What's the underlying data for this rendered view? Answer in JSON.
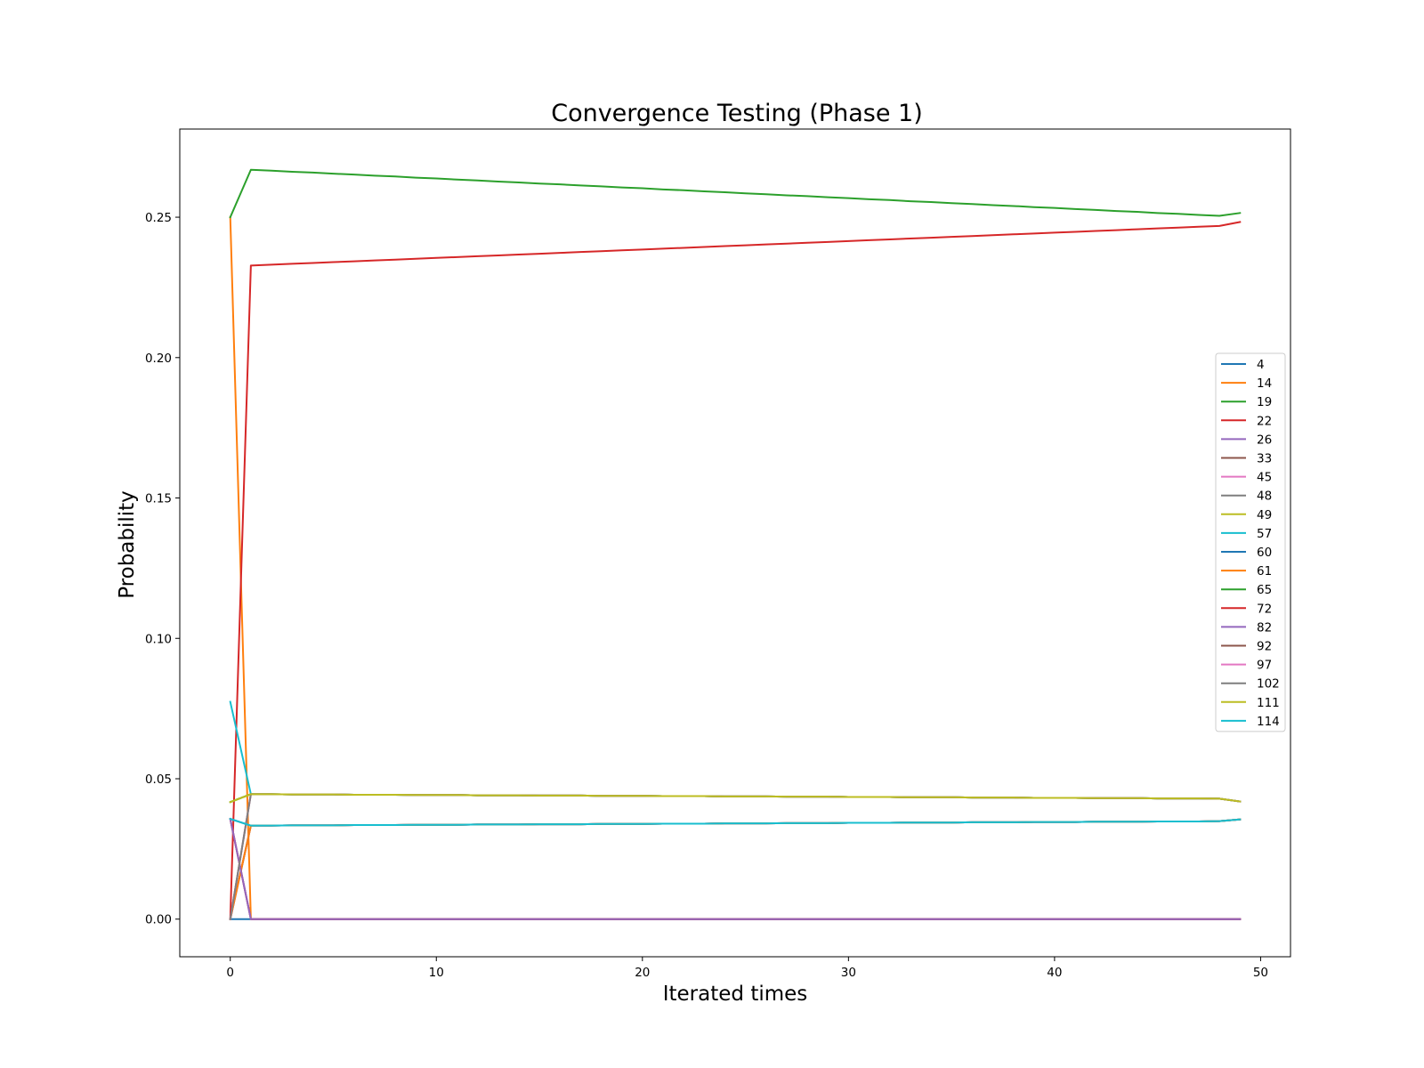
{
  "chart_data": {
    "type": "line",
    "title": "Convergence Testing (Phase 1)",
    "xlabel": "Iterated times",
    "ylabel": "Probability",
    "xlim": [
      -2.45,
      51.45
    ],
    "ylim": [
      -0.0134,
      0.2814
    ],
    "xticks": [
      0,
      10,
      20,
      30,
      40,
      50
    ],
    "xtick_labels": [
      "0",
      "10",
      "20",
      "30",
      "40",
      "50"
    ],
    "yticks": [
      0,
      0.05,
      0.1,
      0.15,
      0.2,
      0.25
    ],
    "ytick_labels": [
      "0.00",
      "0.05",
      "0.10",
      "0.15",
      "0.20",
      "0.25"
    ],
    "grid": false,
    "legend_position": "center-right",
    "x": [
      0,
      1,
      2,
      3,
      4,
      5,
      6,
      7,
      8,
      9,
      10,
      11,
      12,
      13,
      14,
      15,
      16,
      17,
      18,
      19,
      20,
      21,
      22,
      23,
      24,
      25,
      26,
      27,
      28,
      29,
      30,
      31,
      32,
      33,
      34,
      35,
      36,
      37,
      38,
      39,
      40,
      41,
      42,
      43,
      44,
      45,
      46,
      47,
      48,
      49
    ],
    "series": [
      {
        "name": "4",
        "color": "#1f77b4",
        "values": [
          0,
          0,
          0,
          0,
          0,
          0,
          0,
          0,
          0,
          0,
          0,
          0,
          0,
          0,
          0,
          0,
          0,
          0,
          0,
          0,
          0,
          0,
          0,
          0,
          0,
          0,
          0,
          0,
          0,
          0,
          0,
          0,
          0,
          0,
          0,
          0,
          0,
          0,
          0,
          0,
          0,
          0,
          0,
          0,
          0,
          0,
          0,
          0,
          0,
          0
        ]
      },
      {
        "name": "14",
        "color": "#ff7f0e",
        "values": [
          0.25,
          0,
          0,
          0,
          0,
          0,
          0,
          0,
          0,
          0,
          0,
          0,
          0,
          0,
          0,
          0,
          0,
          0,
          0,
          0,
          0,
          0,
          0,
          0,
          0,
          0,
          0,
          0,
          0,
          0,
          0,
          0,
          0,
          0,
          0,
          0,
          0,
          0,
          0,
          0,
          0,
          0,
          0,
          0,
          0,
          0,
          0,
          0,
          0,
          0
        ]
      },
      {
        "name": "19",
        "color": "#2ca02c",
        "values": [
          0.25,
          0.2669,
          0.2666,
          0.2662,
          0.2659,
          0.2655,
          0.2652,
          0.2648,
          0.2645,
          0.2641,
          0.2638,
          0.2634,
          0.2631,
          0.2627,
          0.2624,
          0.262,
          0.2617,
          0.2613,
          0.261,
          0.2606,
          0.2603,
          0.2599,
          0.2596,
          0.2592,
          0.2589,
          0.2585,
          0.2582,
          0.2578,
          0.2575,
          0.2571,
          0.2568,
          0.2564,
          0.2561,
          0.2557,
          0.2554,
          0.255,
          0.2547,
          0.2543,
          0.254,
          0.2536,
          0.2533,
          0.2529,
          0.2526,
          0.2522,
          0.2519,
          0.2515,
          0.2512,
          0.2508,
          0.2505,
          0.2515
        ]
      },
      {
        "name": "22",
        "color": "#d62728",
        "values": [
          0,
          0.2328,
          0.2331,
          0.2334,
          0.2337,
          0.234,
          0.2343,
          0.2346,
          0.2349,
          0.2352,
          0.2355,
          0.2358,
          0.2361,
          0.2364,
          0.2367,
          0.237,
          0.2373,
          0.2376,
          0.2379,
          0.2382,
          0.2385,
          0.2388,
          0.2391,
          0.2394,
          0.2397,
          0.24,
          0.2403,
          0.2406,
          0.2409,
          0.2412,
          0.2415,
          0.2418,
          0.2421,
          0.2424,
          0.2427,
          0.243,
          0.2433,
          0.2436,
          0.2439,
          0.2442,
          0.2445,
          0.2448,
          0.2451,
          0.2454,
          0.2457,
          0.246,
          0.2463,
          0.2466,
          0.2469,
          0.2483
        ]
      },
      {
        "name": "26",
        "color": "#9467bd",
        "values": [
          0.0357,
          0,
          0,
          0,
          0,
          0,
          0,
          0,
          0,
          0,
          0,
          0,
          0,
          0,
          0,
          0,
          0,
          0,
          0,
          0,
          0,
          0,
          0,
          0,
          0,
          0,
          0,
          0,
          0,
          0,
          0,
          0,
          0,
          0,
          0,
          0,
          0,
          0,
          0,
          0,
          0,
          0,
          0,
          0,
          0,
          0,
          0,
          0,
          0,
          0
        ]
      },
      {
        "name": "33",
        "color": "#8c564b",
        "values": [
          0,
          0.0333,
          0.0333,
          0.0334,
          0.0334,
          0.0334,
          0.0335,
          0.0335,
          0.0335,
          0.0336,
          0.0336,
          0.0336,
          0.0337,
          0.0337,
          0.0337,
          0.0338,
          0.0338,
          0.0338,
          0.0339,
          0.0339,
          0.0339,
          0.034,
          0.034,
          0.034,
          0.0341,
          0.0341,
          0.0341,
          0.0342,
          0.0342,
          0.0342,
          0.0343,
          0.0343,
          0.0343,
          0.0344,
          0.0344,
          0.0344,
          0.0345,
          0.0345,
          0.0345,
          0.0346,
          0.0346,
          0.0346,
          0.0347,
          0.0347,
          0.0347,
          0.0348,
          0.0348,
          0.0348,
          0.0349,
          0.0355
        ]
      },
      {
        "name": "45",
        "color": "#e377c2",
        "values": [
          0,
          0.0333,
          0.0333,
          0.0334,
          0.0334,
          0.0334,
          0.0335,
          0.0335,
          0.0335,
          0.0336,
          0.0336,
          0.0336,
          0.0337,
          0.0337,
          0.0337,
          0.0338,
          0.0338,
          0.0338,
          0.0339,
          0.0339,
          0.0339,
          0.034,
          0.034,
          0.034,
          0.0341,
          0.0341,
          0.0341,
          0.0342,
          0.0342,
          0.0342,
          0.0343,
          0.0343,
          0.0343,
          0.0344,
          0.0344,
          0.0344,
          0.0345,
          0.0345,
          0.0345,
          0.0346,
          0.0346,
          0.0346,
          0.0347,
          0.0347,
          0.0347,
          0.0348,
          0.0348,
          0.0348,
          0.0349,
          0.0355
        ]
      },
      {
        "name": "48",
        "color": "#7f7f7f",
        "values": [
          0,
          0.0333,
          0.0333,
          0.0334,
          0.0334,
          0.0334,
          0.0335,
          0.0335,
          0.0335,
          0.0336,
          0.0336,
          0.0336,
          0.0337,
          0.0337,
          0.0337,
          0.0338,
          0.0338,
          0.0338,
          0.0339,
          0.0339,
          0.0339,
          0.034,
          0.034,
          0.034,
          0.0341,
          0.0341,
          0.0341,
          0.0342,
          0.0342,
          0.0342,
          0.0343,
          0.0343,
          0.0343,
          0.0344,
          0.0344,
          0.0344,
          0.0345,
          0.0345,
          0.0345,
          0.0346,
          0.0346,
          0.0346,
          0.0347,
          0.0347,
          0.0347,
          0.0348,
          0.0348,
          0.0348,
          0.0349,
          0.0355
        ]
      },
      {
        "name": "49",
        "color": "#bcbd22",
        "values": [
          0.0417,
          0.0445,
          0.0445,
          0.0444,
          0.0444,
          0.0444,
          0.0443,
          0.0443,
          0.0443,
          0.0442,
          0.0442,
          0.0442,
          0.0441,
          0.0441,
          0.0441,
          0.044,
          0.044,
          0.044,
          0.0439,
          0.0439,
          0.0439,
          0.0438,
          0.0438,
          0.0438,
          0.0437,
          0.0437,
          0.0437,
          0.0436,
          0.0436,
          0.0436,
          0.0435,
          0.0435,
          0.0435,
          0.0434,
          0.0434,
          0.0434,
          0.0433,
          0.0433,
          0.0433,
          0.0432,
          0.0432,
          0.0432,
          0.0431,
          0.0431,
          0.0431,
          0.043,
          0.043,
          0.043,
          0.0429,
          0.0419
        ]
      },
      {
        "name": "57",
        "color": "#17becf",
        "values": [
          0.0774,
          0.0445,
          0.0445,
          0.0444,
          0.0444,
          0.0444,
          0.0443,
          0.0443,
          0.0443,
          0.0442,
          0.0442,
          0.0442,
          0.0441,
          0.0441,
          0.0441,
          0.044,
          0.044,
          0.044,
          0.0439,
          0.0439,
          0.0439,
          0.0438,
          0.0438,
          0.0438,
          0.0437,
          0.0437,
          0.0437,
          0.0436,
          0.0436,
          0.0436,
          0.0435,
          0.0435,
          0.0435,
          0.0434,
          0.0434,
          0.0434,
          0.0433,
          0.0433,
          0.0433,
          0.0432,
          0.0432,
          0.0432,
          0.0431,
          0.0431,
          0.0431,
          0.043,
          0.043,
          0.043,
          0.0429,
          0.0419
        ]
      },
      {
        "name": "60",
        "color": "#1f77b4",
        "values": [
          0.0357,
          0.0333,
          0.0333,
          0.0334,
          0.0334,
          0.0334,
          0.0335,
          0.0335,
          0.0335,
          0.0336,
          0.0336,
          0.0336,
          0.0337,
          0.0337,
          0.0337,
          0.0338,
          0.0338,
          0.0338,
          0.0339,
          0.0339,
          0.0339,
          0.034,
          0.034,
          0.034,
          0.0341,
          0.0341,
          0.0341,
          0.0342,
          0.0342,
          0.0342,
          0.0343,
          0.0343,
          0.0343,
          0.0344,
          0.0344,
          0.0344,
          0.0345,
          0.0345,
          0.0345,
          0.0346,
          0.0346,
          0.0346,
          0.0347,
          0.0347,
          0.0347,
          0.0348,
          0.0348,
          0.0348,
          0.0349,
          0.0355
        ]
      },
      {
        "name": "61",
        "color": "#ff7f0e",
        "values": [
          0,
          0.0333,
          0.0333,
          0.0334,
          0.0334,
          0.0334,
          0.0335,
          0.0335,
          0.0335,
          0.0336,
          0.0336,
          0.0336,
          0.0337,
          0.0337,
          0.0337,
          0.0338,
          0.0338,
          0.0338,
          0.0339,
          0.0339,
          0.0339,
          0.034,
          0.034,
          0.034,
          0.0341,
          0.0341,
          0.0341,
          0.0342,
          0.0342,
          0.0342,
          0.0343,
          0.0343,
          0.0343,
          0.0344,
          0.0344,
          0.0344,
          0.0345,
          0.0345,
          0.0345,
          0.0346,
          0.0346,
          0.0346,
          0.0347,
          0.0347,
          0.0347,
          0.0348,
          0.0348,
          0.0348,
          0.0349,
          0.0355
        ]
      },
      {
        "name": "65",
        "color": "#2ca02c",
        "values": [
          0.0417,
          0.0445,
          0.0445,
          0.0444,
          0.0444,
          0.0444,
          0.0443,
          0.0443,
          0.0443,
          0.0442,
          0.0442,
          0.0442,
          0.0441,
          0.0441,
          0.0441,
          0.044,
          0.044,
          0.044,
          0.0439,
          0.0439,
          0.0439,
          0.0438,
          0.0438,
          0.0438,
          0.0437,
          0.0437,
          0.0437,
          0.0436,
          0.0436,
          0.0436,
          0.0435,
          0.0435,
          0.0435,
          0.0434,
          0.0434,
          0.0434,
          0.0433,
          0.0433,
          0.0433,
          0.0432,
          0.0432,
          0.0432,
          0.0431,
          0.0431,
          0.0431,
          0.043,
          0.043,
          0.043,
          0.0429,
          0.0419
        ]
      },
      {
        "name": "72",
        "color": "#d62728",
        "values": [
          0.0357,
          0,
          0,
          0,
          0,
          0,
          0,
          0,
          0,
          0,
          0,
          0,
          0,
          0,
          0,
          0,
          0,
          0,
          0,
          0,
          0,
          0,
          0,
          0,
          0,
          0,
          0,
          0,
          0,
          0,
          0,
          0,
          0,
          0,
          0,
          0,
          0,
          0,
          0,
          0,
          0,
          0,
          0,
          0,
          0,
          0,
          0,
          0,
          0,
          0
        ]
      },
      {
        "name": "82",
        "color": "#9467bd",
        "values": [
          0.0357,
          0,
          0,
          0,
          0,
          0,
          0,
          0,
          0,
          0,
          0,
          0,
          0,
          0,
          0,
          0,
          0,
          0,
          0,
          0,
          0,
          0,
          0,
          0,
          0,
          0,
          0,
          0,
          0,
          0,
          0,
          0,
          0,
          0,
          0,
          0,
          0,
          0,
          0,
          0,
          0,
          0,
          0,
          0,
          0,
          0,
          0,
          0,
          0,
          0
        ]
      },
      {
        "name": "92",
        "color": "#8c564b",
        "values": [
          0,
          0.0445,
          0.0445,
          0.0444,
          0.0444,
          0.0444,
          0.0443,
          0.0443,
          0.0443,
          0.0442,
          0.0442,
          0.0442,
          0.0441,
          0.0441,
          0.0441,
          0.044,
          0.044,
          0.044,
          0.0439,
          0.0439,
          0.0439,
          0.0438,
          0.0438,
          0.0438,
          0.0437,
          0.0437,
          0.0437,
          0.0436,
          0.0436,
          0.0436,
          0.0435,
          0.0435,
          0.0435,
          0.0434,
          0.0434,
          0.0434,
          0.0433,
          0.0433,
          0.0433,
          0.0432,
          0.0432,
          0.0432,
          0.0431,
          0.0431,
          0.0431,
          0.043,
          0.043,
          0.043,
          0.0429,
          0.0419
        ]
      },
      {
        "name": "97",
        "color": "#e377c2",
        "values": [
          0,
          0.0445,
          0.0445,
          0.0444,
          0.0444,
          0.0444,
          0.0443,
          0.0443,
          0.0443,
          0.0442,
          0.0442,
          0.0442,
          0.0441,
          0.0441,
          0.0441,
          0.044,
          0.044,
          0.044,
          0.0439,
          0.0439,
          0.0439,
          0.0438,
          0.0438,
          0.0438,
          0.0437,
          0.0437,
          0.0437,
          0.0436,
          0.0436,
          0.0436,
          0.0435,
          0.0435,
          0.0435,
          0.0434,
          0.0434,
          0.0434,
          0.0433,
          0.0433,
          0.0433,
          0.0432,
          0.0432,
          0.0432,
          0.0431,
          0.0431,
          0.0431,
          0.043,
          0.043,
          0.043,
          0.0429,
          0.0419
        ]
      },
      {
        "name": "102",
        "color": "#7f7f7f",
        "values": [
          0,
          0.0445,
          0.0445,
          0.0444,
          0.0444,
          0.0444,
          0.0443,
          0.0443,
          0.0443,
          0.0442,
          0.0442,
          0.0442,
          0.0441,
          0.0441,
          0.0441,
          0.044,
          0.044,
          0.044,
          0.0439,
          0.0439,
          0.0439,
          0.0438,
          0.0438,
          0.0438,
          0.0437,
          0.0437,
          0.0437,
          0.0436,
          0.0436,
          0.0436,
          0.0435,
          0.0435,
          0.0435,
          0.0434,
          0.0434,
          0.0434,
          0.0433,
          0.0433,
          0.0433,
          0.0432,
          0.0432,
          0.0432,
          0.0431,
          0.0431,
          0.0431,
          0.043,
          0.043,
          0.043,
          0.0429,
          0.0419
        ]
      },
      {
        "name": "111",
        "color": "#bcbd22",
        "values": [
          0.0417,
          0.0445,
          0.0445,
          0.0444,
          0.0444,
          0.0444,
          0.0443,
          0.0443,
          0.0443,
          0.0442,
          0.0442,
          0.0442,
          0.0441,
          0.0441,
          0.0441,
          0.044,
          0.044,
          0.044,
          0.0439,
          0.0439,
          0.0439,
          0.0438,
          0.0438,
          0.0438,
          0.0437,
          0.0437,
          0.0437,
          0.0436,
          0.0436,
          0.0436,
          0.0435,
          0.0435,
          0.0435,
          0.0434,
          0.0434,
          0.0434,
          0.0433,
          0.0433,
          0.0433,
          0.0432,
          0.0432,
          0.0432,
          0.0431,
          0.0431,
          0.0431,
          0.043,
          0.043,
          0.043,
          0.0429,
          0.0419
        ]
      },
      {
        "name": "114",
        "color": "#17becf",
        "values": [
          0.0357,
          0.0333,
          0.0333,
          0.0334,
          0.0334,
          0.0334,
          0.0335,
          0.0335,
          0.0335,
          0.0336,
          0.0336,
          0.0336,
          0.0337,
          0.0337,
          0.0337,
          0.0338,
          0.0338,
          0.0338,
          0.0339,
          0.0339,
          0.0339,
          0.034,
          0.034,
          0.034,
          0.0341,
          0.0341,
          0.0341,
          0.0342,
          0.0342,
          0.0342,
          0.0343,
          0.0343,
          0.0343,
          0.0344,
          0.0344,
          0.0344,
          0.0345,
          0.0345,
          0.0345,
          0.0346,
          0.0346,
          0.0346,
          0.0347,
          0.0347,
          0.0347,
          0.0348,
          0.0348,
          0.0348,
          0.0349,
          0.0355
        ]
      }
    ]
  }
}
